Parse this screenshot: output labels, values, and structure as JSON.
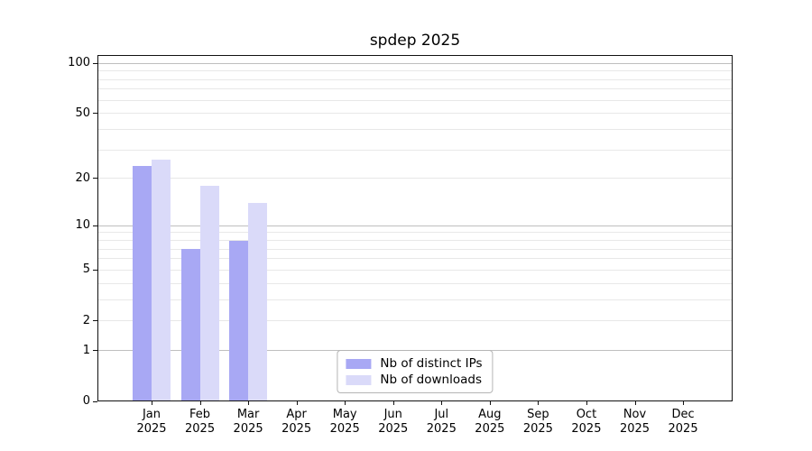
{
  "chart_data": {
    "type": "bar",
    "title": "spdep 2025",
    "categories": [
      "Jan 2025",
      "Feb 2025",
      "Mar 2025",
      "Apr 2025",
      "May 2025",
      "Jun 2025",
      "Jul 2025",
      "Aug 2025",
      "Sep 2025",
      "Oct 2025",
      "Nov 2025",
      "Dec 2025"
    ],
    "series": [
      {
        "name": "Nb of distinct IPs",
        "color": "#a8a8f4",
        "values": [
          24,
          7,
          8,
          null,
          null,
          null,
          null,
          null,
          null,
          null,
          null,
          null
        ]
      },
      {
        "name": "Nb of downloads",
        "color": "#dadaf9",
        "values": [
          26,
          18,
          14,
          null,
          null,
          null,
          null,
          null,
          null,
          null,
          null,
          null
        ]
      }
    ],
    "y_scale": "log1p",
    "ylim": [
      0,
      112
    ],
    "y_ticks": [
      0,
      1,
      2,
      5,
      10,
      20,
      50,
      100
    ],
    "grid": "horizontal",
    "grid_major_values": [
      1,
      10,
      100
    ],
    "grid_minor_values": [
      2,
      3,
      4,
      5,
      6,
      7,
      8,
      9,
      20,
      30,
      40,
      50,
      60,
      70,
      80,
      90
    ],
    "legend_position": "lower center",
    "xlabel": "",
    "ylabel": "",
    "colors": {
      "grid_major": "#bfbfbf",
      "grid_minor": "#e8e8e8",
      "spine": "#111111",
      "background": "#ffffff"
    }
  }
}
